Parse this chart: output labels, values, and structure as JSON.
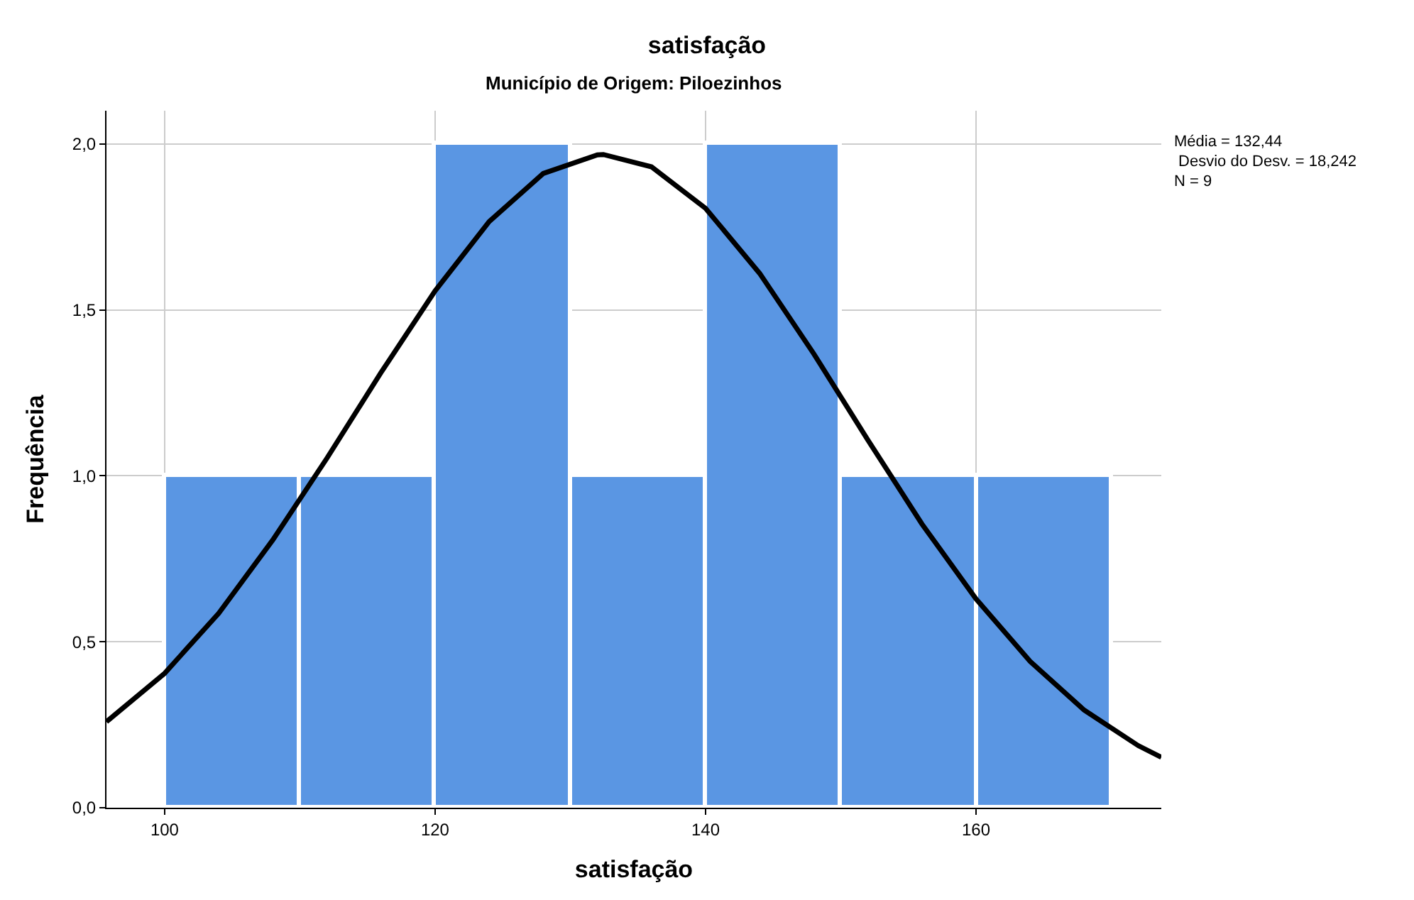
{
  "chart_data": {
    "type": "histogram",
    "title": "satisfação",
    "subtitle": "Município de Origem: Piloezinhos",
    "xlabel": "satisfação",
    "ylabel": "Frequência",
    "bins": [
      100,
      110,
      120,
      130,
      140,
      150,
      160,
      170
    ],
    "series": [
      {
        "color": "#5a96e3",
        "values": [
          1,
          1,
          2,
          1,
          2,
          1,
          1
        ]
      },
      {
        "type": "line",
        "color": "#000000",
        "x": [
          95.7,
          100,
          104,
          108,
          112,
          116,
          120,
          124,
          128,
          132,
          132.44,
          136,
          140,
          144,
          148,
          152,
          156,
          160,
          164,
          168,
          172,
          173.7
        ],
        "values": [
          0.259,
          0.405,
          0.586,
          0.807,
          1.053,
          1.311,
          1.557,
          1.766,
          1.911,
          1.967,
          1.968,
          1.931,
          1.806,
          1.61,
          1.368,
          1.108,
          0.855,
          0.629,
          0.441,
          0.294,
          0.187,
          0.152
        ]
      }
    ],
    "xlim": [
      95.7,
      173.7
    ],
    "xticks": [
      100,
      120,
      140,
      160
    ],
    "ylim": [
      0,
      2.1
    ],
    "yticks": [
      {
        "value": 0,
        "label": "0,0"
      },
      {
        "value": 0.5,
        "label": "0,5"
      },
      {
        "value": 1,
        "label": "1,0"
      },
      {
        "value": 1.5,
        "label": "1,5"
      },
      {
        "value": 2,
        "label": "2,0"
      }
    ],
    "grid": true,
    "annotations": [
      "Média = 132,44",
      " Desvio do Desv. = 18,242",
      "N = 9"
    ]
  }
}
